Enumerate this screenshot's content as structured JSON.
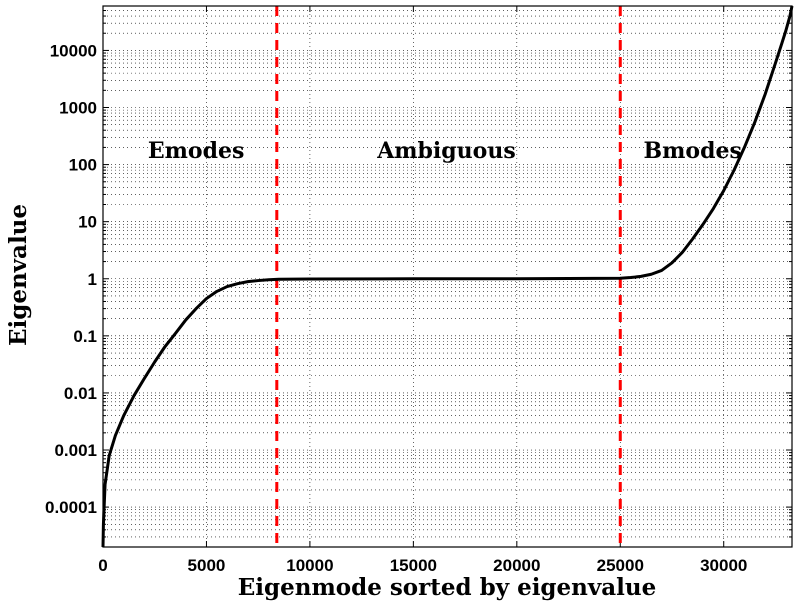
{
  "chart_data": {
    "type": "line",
    "title": "",
    "xlabel": "Eigenmode sorted by eigenvalue",
    "ylabel": "Eigenvalue",
    "xlim": [
      0,
      33300
    ],
    "ylim": [
      2e-05,
      60000
    ],
    "yscale": "log",
    "grid": true,
    "x_ticks": [
      0,
      5000,
      10000,
      15000,
      20000,
      25000,
      30000
    ],
    "x_tick_labels": [
      "0",
      "5000",
      "10000",
      "15000",
      "20000",
      "25000",
      "30000"
    ],
    "y_ticks": [
      0.0001,
      0.001,
      0.01,
      0.1,
      1,
      10,
      100,
      1000,
      10000
    ],
    "y_tick_labels": [
      "0.0001",
      "0.001",
      "0.01",
      "0.1",
      "1",
      "10",
      "100",
      "1000",
      "10000"
    ],
    "series": [
      {
        "color": "#000000",
        "x": [
          0,
          20,
          100,
          300,
          600,
          1000,
          1500,
          2000,
          2500,
          3000,
          3500,
          4000,
          4500,
          5000,
          5500,
          6000,
          6500,
          7000,
          7500,
          8000,
          8500,
          10000,
          15000,
          20000,
          25000,
          25500,
          26000,
          26500,
          27000,
          27500,
          28000,
          28500,
          29000,
          29500,
          30000,
          30500,
          31000,
          31500,
          32000,
          32500,
          32800,
          33000,
          33200,
          33300
        ],
        "y": [
          2e-05,
          5e-05,
          0.00025,
          0.0008,
          0.0018,
          0.004,
          0.009,
          0.018,
          0.035,
          0.065,
          0.11,
          0.19,
          0.3,
          0.45,
          0.6,
          0.73,
          0.82,
          0.89,
          0.93,
          0.96,
          0.98,
          0.99,
          1.0,
          1.0,
          1.02,
          1.05,
          1.1,
          1.2,
          1.4,
          1.9,
          2.9,
          5,
          9,
          17,
          35,
          80,
          200,
          550,
          1700,
          6000,
          13000,
          22000,
          40000,
          60000
        ]
      }
    ],
    "vertical_lines": [
      {
        "x": 8400,
        "color": "#ff0000",
        "style": "dashed"
      },
      {
        "x": 25000,
        "color": "#ff0000",
        "style": "dashed"
      }
    ],
    "annotations": [
      {
        "text": "Emodes",
        "x": 4500,
        "y": 130
      },
      {
        "text": "Ambiguous",
        "x": 16600,
        "y": 130
      },
      {
        "text": "Bmodes",
        "x": 28500,
        "y": 130
      }
    ]
  }
}
